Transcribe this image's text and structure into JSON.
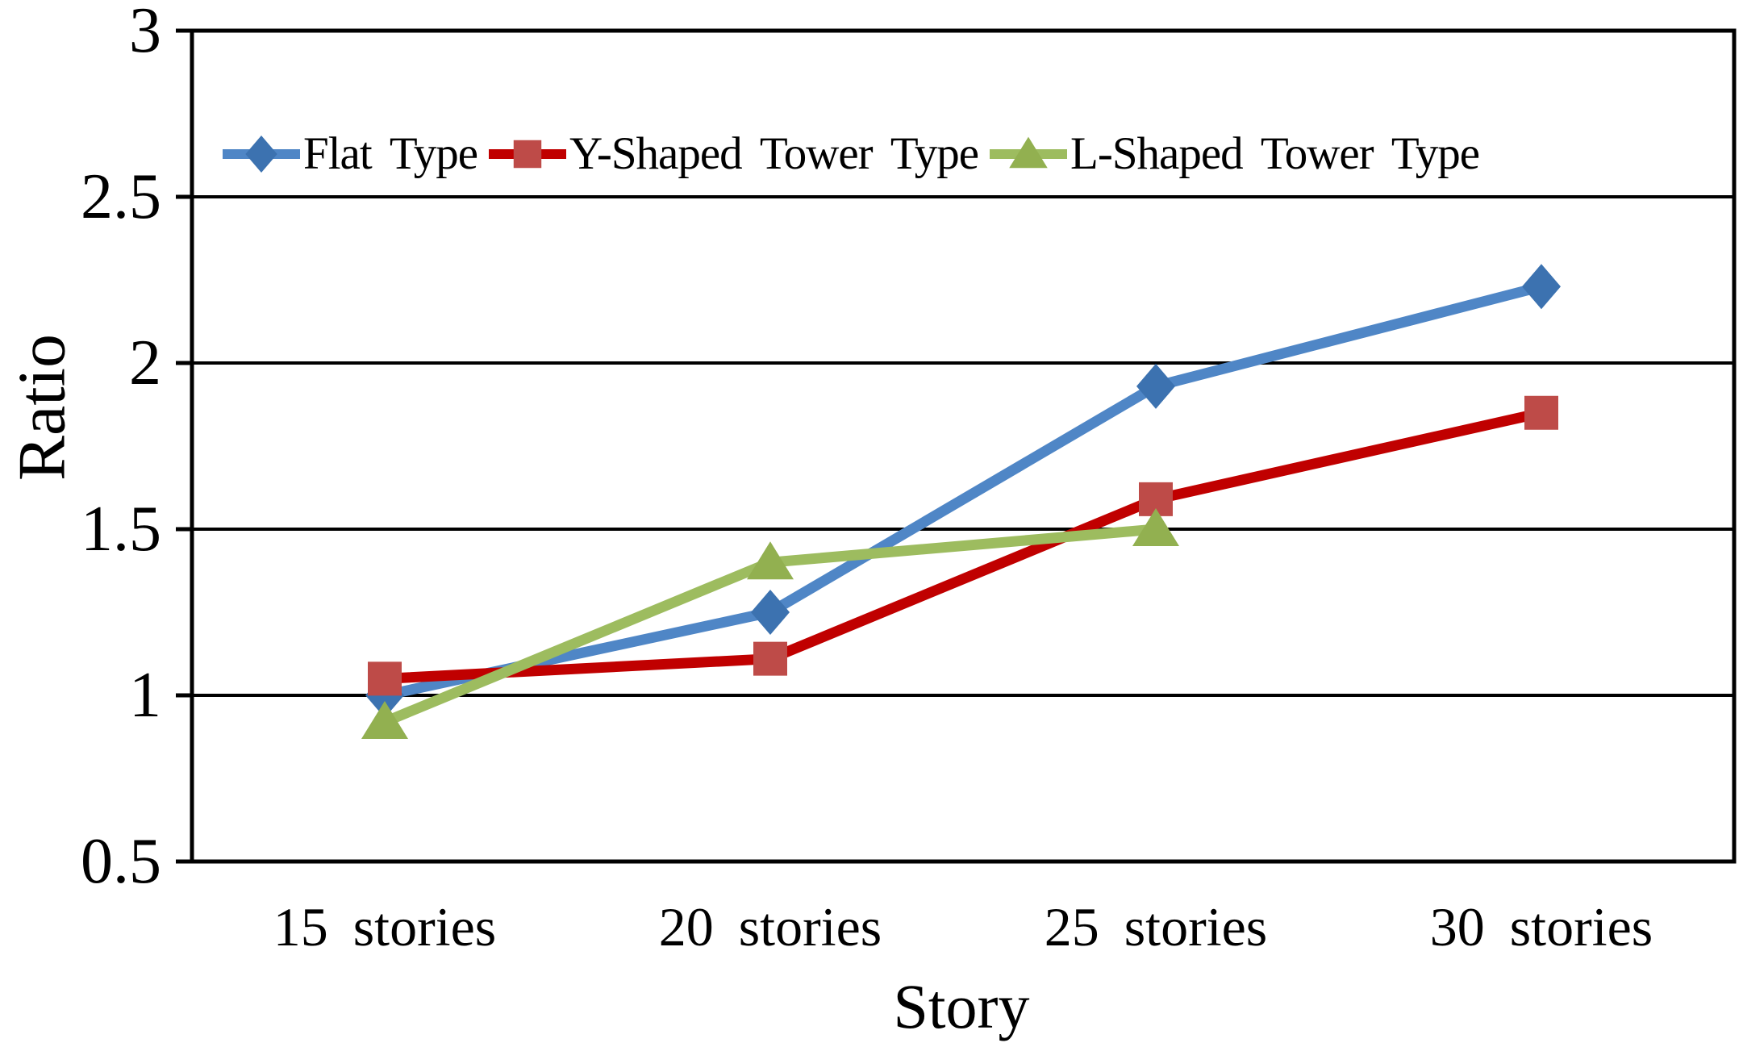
{
  "figure": {
    "kind": "scientific line chart",
    "background_color": "#ffffff",
    "axis_color": "#000000"
  },
  "chart_data": {
    "type": "line",
    "title": "",
    "xlabel": "Story",
    "ylabel": "Ratio",
    "categories": [
      "15 stories",
      "20 stories",
      "25 stories",
      "30 stories"
    ],
    "series": [
      {
        "name": "Flat Type",
        "marker": "diamond",
        "line_color": "#4F86C6",
        "marker_color": "#3C72B0",
        "values": [
          1.0,
          1.25,
          1.93,
          2.23
        ]
      },
      {
        "name": "Y-Shaped Tower Type",
        "marker": "square",
        "line_color": "#C00000",
        "marker_color": "#BE4B48",
        "values": [
          1.05,
          1.11,
          1.59,
          1.85
        ]
      },
      {
        "name": "L-Shaped Tower Type",
        "marker": "triangle",
        "line_color": "#9DBC5F",
        "marker_color": "#92B050",
        "values": [
          0.92,
          1.4,
          1.5,
          null
        ]
      }
    ],
    "ylim": [
      0.5,
      3.0
    ],
    "yticks": [
      3,
      2.5,
      2,
      1.5,
      1,
      0.5
    ],
    "grid": "horizontal-black",
    "legend_position": "top-inside"
  }
}
